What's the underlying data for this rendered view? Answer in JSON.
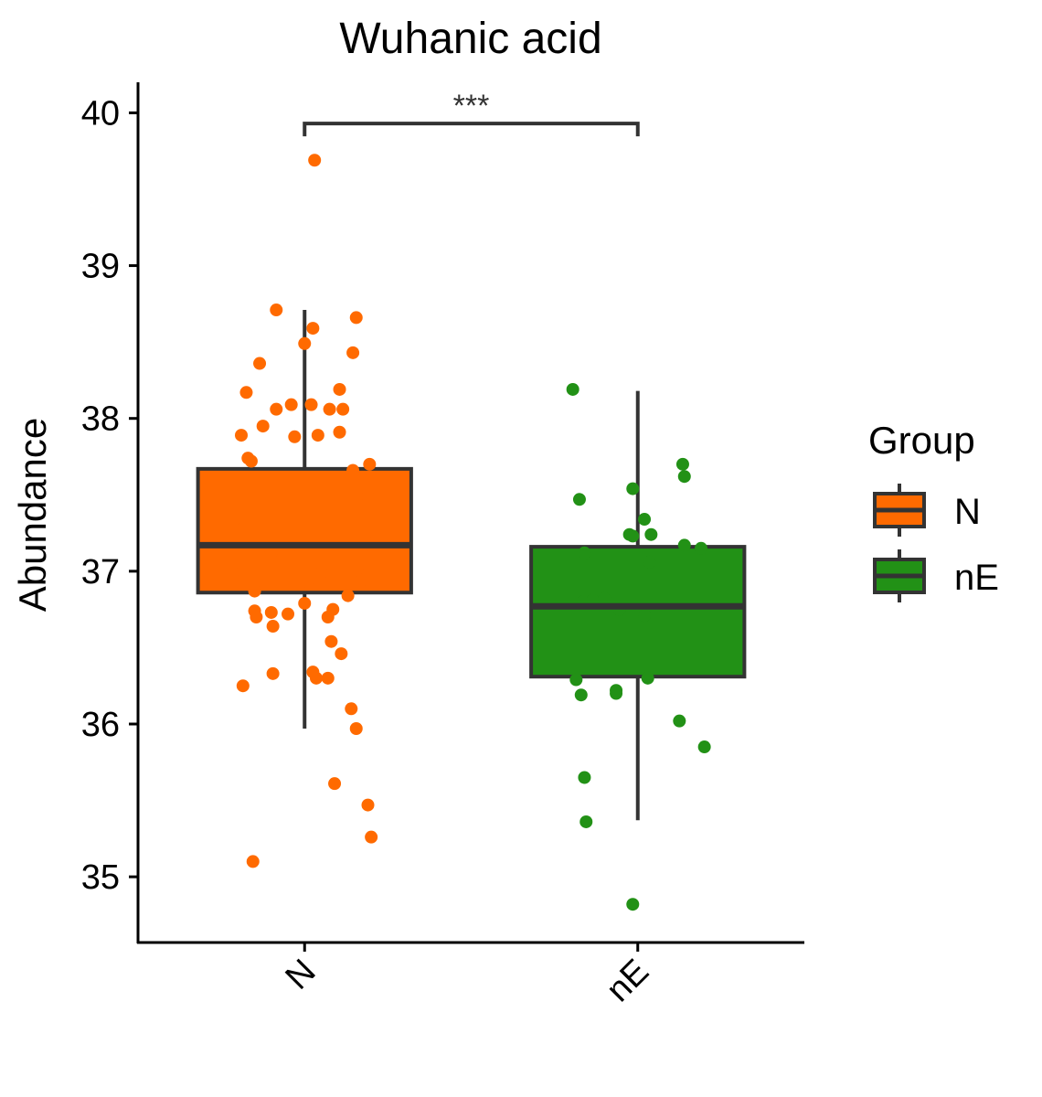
{
  "chart_data": {
    "type": "box",
    "title": "Wuhanic acid",
    "xlabel": "",
    "ylabel": "Abundance",
    "categories": [
      "N",
      "nE"
    ],
    "y_ticks": [
      "35",
      "36",
      "37",
      "38",
      "39",
      "40"
    ],
    "y_tick_values": [
      35,
      36,
      37,
      38,
      39,
      40
    ],
    "ylim": [
      34.57,
      40.2
    ],
    "grid": false,
    "legend": {
      "title": "Group",
      "position": "right",
      "entries": [
        "N",
        "nE"
      ]
    },
    "significance": {
      "label": "***",
      "between": [
        "N",
        "nE"
      ],
      "y": 39.93
    },
    "series": [
      {
        "name": "N",
        "color": "#ff6a00",
        "box": {
          "whisker_low": 35.97,
          "q1": 36.86,
          "median": 37.17,
          "q3": 37.67,
          "whisker_high": 38.71
        },
        "points": [
          [
            -0.32,
            37.72
          ],
          [
            -0.38,
            37.89
          ],
          [
            -0.35,
            38.17
          ],
          [
            -0.27,
            38.36
          ],
          [
            -0.25,
            37.95
          ],
          [
            -0.17,
            38.71
          ],
          [
            -0.17,
            38.06
          ],
          [
            -0.08,
            38.09
          ],
          [
            -0.06,
            37.88
          ],
          [
            0.0,
            38.49
          ],
          [
            0.05,
            38.59
          ],
          [
            0.06,
            39.69
          ],
          [
            0.04,
            38.09
          ],
          [
            0.08,
            37.89
          ],
          [
            0.15,
            38.06
          ],
          [
            0.21,
            38.19
          ],
          [
            0.23,
            38.06
          ],
          [
            0.29,
            38.43
          ],
          [
            0.31,
            38.66
          ],
          [
            0.21,
            37.91
          ],
          [
            0.29,
            37.66
          ],
          [
            0.39,
            37.7
          ],
          [
            0.38,
            37.49
          ],
          [
            0.38,
            37.18
          ],
          [
            0.35,
            37.11
          ],
          [
            0.38,
            36.98
          ],
          [
            0.34,
            36.94
          ],
          [
            -0.37,
            37.28
          ],
          [
            -0.34,
            37.74
          ],
          [
            -0.37,
            37.0
          ],
          [
            -0.28,
            37.14
          ],
          [
            -0.3,
            36.87
          ],
          [
            -0.2,
            37.12
          ],
          [
            -0.03,
            37.16
          ],
          [
            0.02,
            36.93
          ],
          [
            0.1,
            36.99
          ],
          [
            -0.3,
            36.74
          ],
          [
            -0.29,
            36.7
          ],
          [
            -0.2,
            36.73
          ],
          [
            -0.19,
            36.64
          ],
          [
            -0.1,
            36.72
          ],
          [
            0.0,
            36.79
          ],
          [
            0.14,
            36.7
          ],
          [
            0.17,
            36.75
          ],
          [
            0.26,
            36.84
          ],
          [
            0.16,
            36.54
          ],
          [
            0.22,
            36.46
          ],
          [
            -0.37,
            36.25
          ],
          [
            -0.19,
            36.33
          ],
          [
            0.05,
            36.34
          ],
          [
            0.07,
            36.3
          ],
          [
            0.14,
            36.3
          ],
          [
            0.28,
            36.1
          ],
          [
            0.31,
            35.97
          ],
          [
            0.18,
            35.61
          ],
          [
            0.38,
            35.47
          ],
          [
            0.4,
            35.26
          ],
          [
            -0.31,
            35.1
          ]
        ]
      },
      {
        "name": "nE",
        "color": "#229116",
        "box": {
          "whisker_low": 35.37,
          "q1": 36.31,
          "median": 36.77,
          "q3": 37.16,
          "whisker_high": 38.18
        },
        "points": [
          [
            -0.39,
            38.19
          ],
          [
            -0.35,
            37.47
          ],
          [
            -0.32,
            37.12
          ],
          [
            -0.33,
            36.8
          ],
          [
            -0.27,
            36.81
          ],
          [
            -0.2,
            36.82
          ],
          [
            -0.11,
            36.75
          ],
          [
            -0.05,
            37.24
          ],
          [
            -0.03,
            37.23
          ],
          [
            -0.03,
            37.54
          ],
          [
            0.04,
            37.34
          ],
          [
            0.08,
            37.24
          ],
          [
            0.07,
            37.06
          ],
          [
            0.27,
            37.7
          ],
          [
            0.28,
            37.62
          ],
          [
            0.28,
            37.17
          ],
          [
            0.38,
            37.15
          ],
          [
            0.04,
            36.71
          ],
          [
            -0.37,
            36.29
          ],
          [
            -0.34,
            36.19
          ],
          [
            -0.13,
            36.2
          ],
          [
            -0.13,
            36.22
          ],
          [
            0.06,
            36.3
          ],
          [
            0.25,
            36.02
          ],
          [
            0.4,
            35.85
          ],
          [
            -0.32,
            35.65
          ],
          [
            -0.31,
            35.36
          ],
          [
            -0.03,
            34.82
          ]
        ]
      }
    ]
  }
}
